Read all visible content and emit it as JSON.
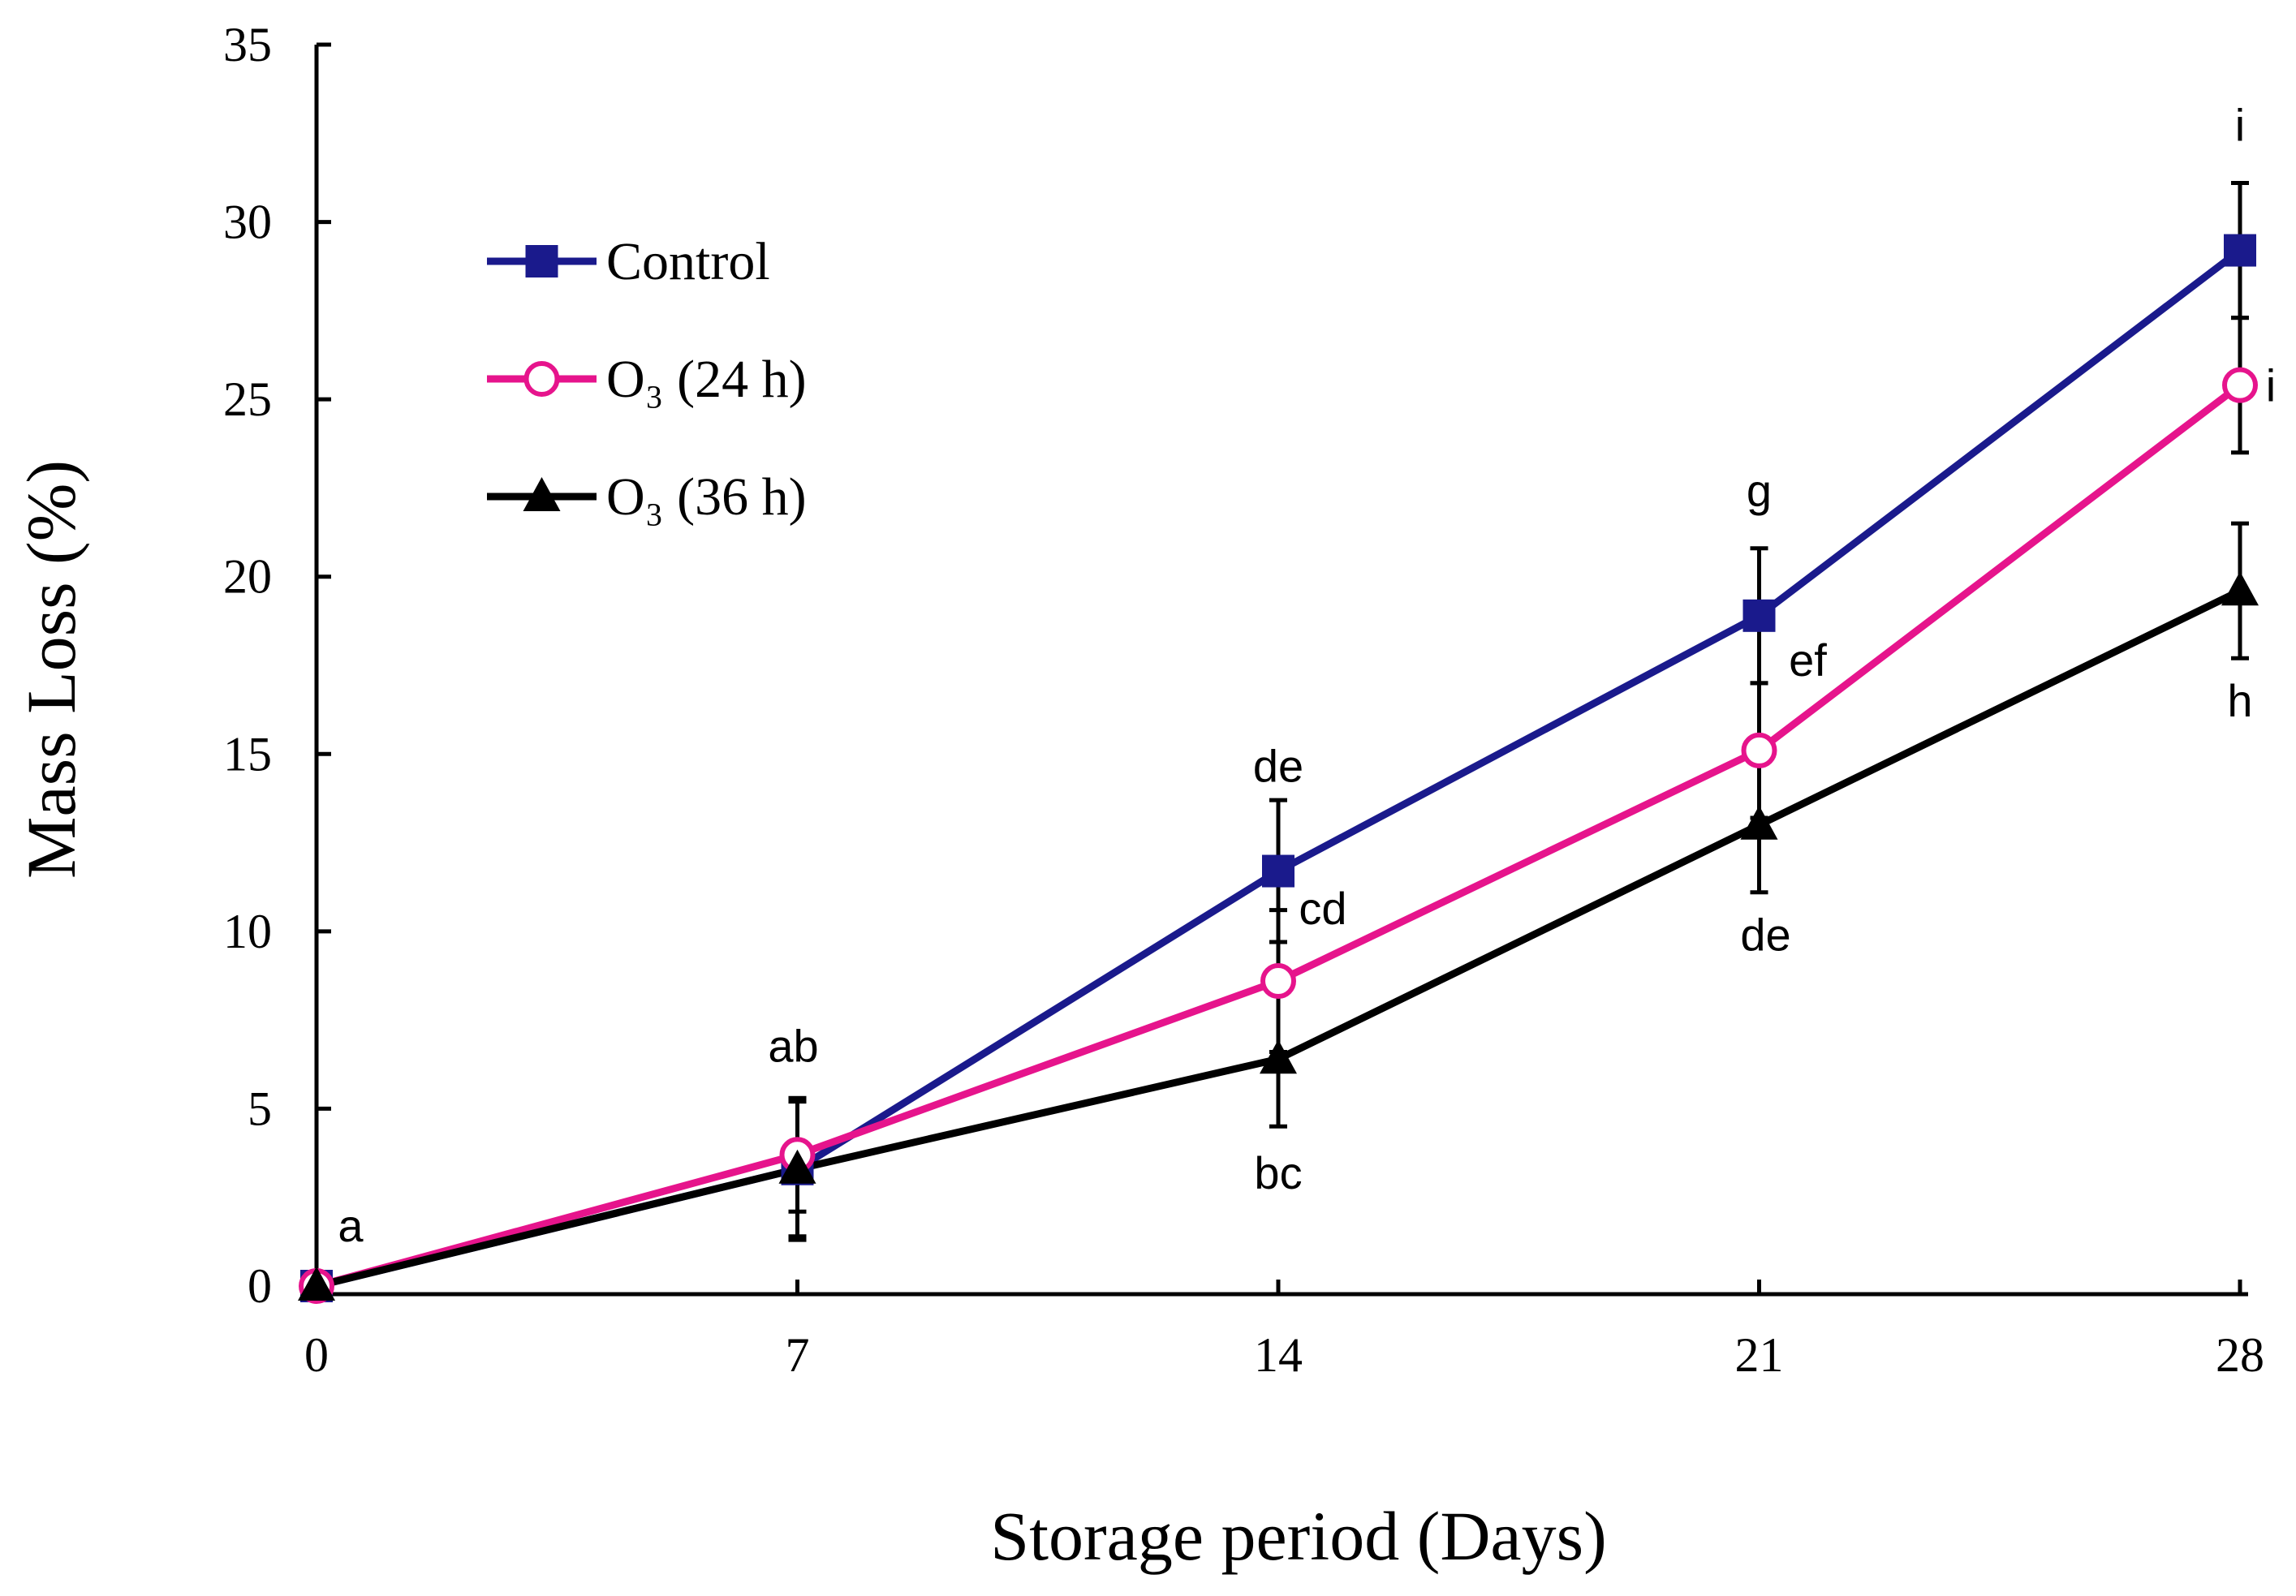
{
  "chart_data": {
    "type": "line",
    "title": "",
    "xlabel": "Storage period (Days)",
    "ylabel": "Mass Loss  (%)",
    "x": [
      0,
      7,
      14,
      21,
      28
    ],
    "xticks": [
      "0",
      "7",
      "14",
      "21",
      "28"
    ],
    "yticks": [
      "0",
      "5",
      "10",
      "15",
      "20",
      "25",
      "30",
      "35"
    ],
    "xlim": [
      0,
      28
    ],
    "ylim": [
      0,
      35
    ],
    "grid": false,
    "legend_position": "top-left",
    "series": [
      {
        "name": "Control",
        "color": "#1a1a8c",
        "marker": "square",
        "values": [
          0,
          3.3,
          11.7,
          18.9,
          29.2
        ],
        "errors": [
          0,
          2.0,
          2.0,
          1.9,
          1.9
        ],
        "labels": [
          "",
          "",
          "de",
          "g",
          "i"
        ]
      },
      {
        "name": "O₃ (24 h)",
        "color": "#e6148c",
        "marker": "open-circle",
        "values": [
          0,
          3.7,
          8.6,
          15.1,
          25.4
        ],
        "errors": [
          0,
          1.6,
          2.0,
          1.9,
          1.9
        ],
        "labels": [
          "a",
          "ab",
          "cd",
          "ef",
          "i"
        ]
      },
      {
        "name": "O₃ (36 h)",
        "color": "#000000",
        "marker": "triangle",
        "values": [
          0,
          3.3,
          6.4,
          13.0,
          19.6
        ],
        "errors": [
          0,
          1.9,
          1.9,
          1.9,
          1.9
        ],
        "labels": [
          "",
          "",
          "bc",
          "de",
          "h"
        ]
      }
    ]
  }
}
